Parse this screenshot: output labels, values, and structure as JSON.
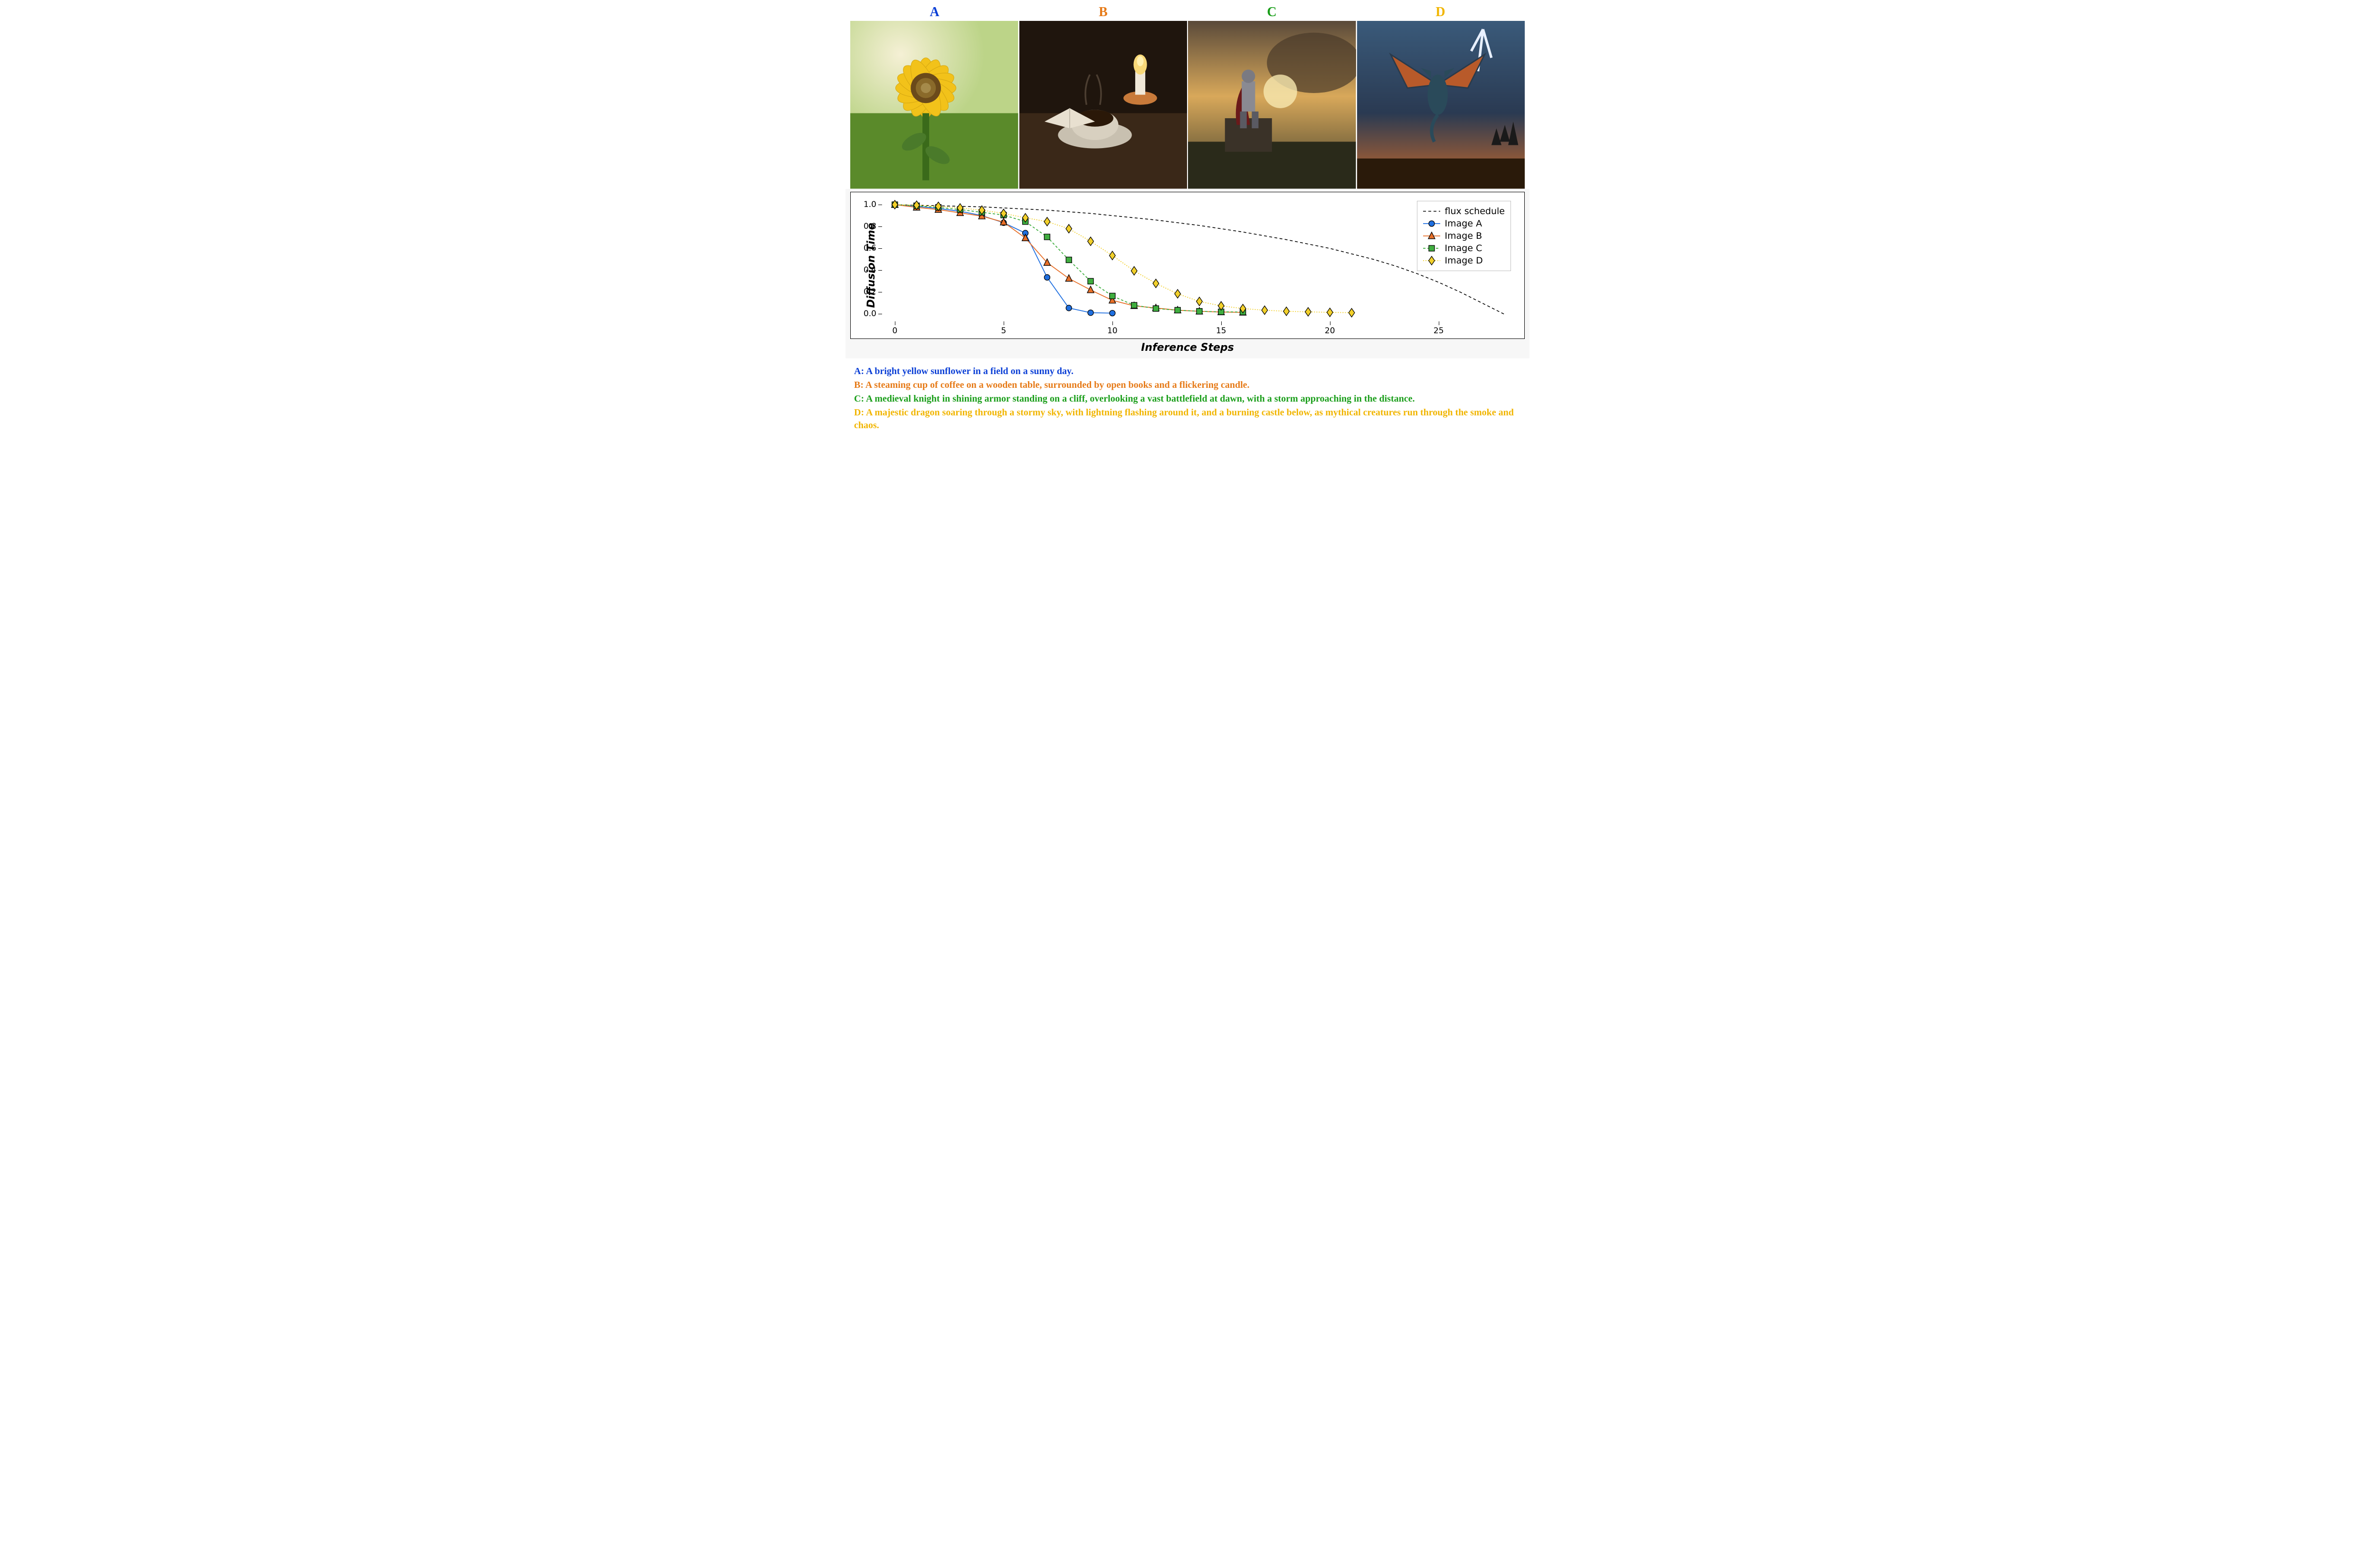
{
  "header": {
    "labels": [
      "A",
      "B",
      "C",
      "D"
    ],
    "colors": [
      "#0b3fd6",
      "#e67a17",
      "#1a9e1a",
      "#f1b500"
    ]
  },
  "images": {
    "A": {
      "desc": "sunflower-image",
      "bg": "linear-gradient(180deg,#dfe9c8 0%,#a7c85a 55%,#5b8a2a 100%)"
    },
    "B": {
      "desc": "coffee-books-candle-image",
      "bg": "radial-gradient(circle at 70% 30%, #6b4a2a 0%, #2a1d12 70%)"
    },
    "C": {
      "desc": "knight-cliff-storm-image",
      "bg": "linear-gradient(180deg,#7a6a52 0%,#c7a65a 40%,#3a3a2a 100%)"
    },
    "D": {
      "desc": "dragon-stormy-sky-image",
      "bg": "linear-gradient(180deg,#3a5a7a 0%,#2a3a52 40%,#d6722a 100%)"
    }
  },
  "chart": {
    "type": "line",
    "xlabel": "Inference Steps",
    "ylabel": "Diffusion Time",
    "xlim": [
      -0.5,
      28.5
    ],
    "ylim": [
      -0.05,
      1.07
    ],
    "xticks": [
      0,
      5,
      10,
      15,
      20,
      25
    ],
    "yticks": [
      0.0,
      0.2,
      0.4,
      0.6,
      0.8,
      1.0
    ],
    "ytick_labels": [
      "0.0",
      "0.2",
      "0.4",
      "0.6",
      "0.8",
      "1.0"
    ],
    "background_color": "#ffffff",
    "outer_background": "#f7f7f7",
    "border_color": "#000000",
    "label_fontsize": 22,
    "tick_fontsize": 17,
    "legend_fontsize": 19,
    "series": {
      "flux": {
        "label": "flux schedule",
        "color": "#000000",
        "dash": "6,5",
        "linewidth": 1.6,
        "marker": "none",
        "x": [
          0,
          1,
          2,
          3,
          4,
          5,
          6,
          7,
          8,
          9,
          10,
          11,
          12,
          13,
          14,
          15,
          16,
          17,
          18,
          19,
          20,
          21,
          22,
          23,
          24,
          25,
          26,
          27,
          28
        ],
        "y": [
          1.0,
          0.995,
          0.99,
          0.985,
          0.98,
          0.97,
          0.96,
          0.95,
          0.935,
          0.92,
          0.9,
          0.88,
          0.86,
          0.835,
          0.81,
          0.78,
          0.75,
          0.715,
          0.68,
          0.64,
          0.6,
          0.55,
          0.5,
          0.44,
          0.37,
          0.29,
          0.2,
          0.1,
          0.0
        ]
      },
      "A": {
        "label": "Image A",
        "color": "#1f6fe0",
        "dash": "none",
        "linewidth": 1.8,
        "marker": "circle",
        "marker_size": 6,
        "x": [
          0,
          1,
          2,
          3,
          4,
          5,
          6,
          7,
          8,
          9,
          10
        ],
        "y": [
          1.0,
          0.985,
          0.965,
          0.94,
          0.9,
          0.835,
          0.74,
          0.335,
          0.055,
          0.012,
          0.008
        ]
      },
      "B": {
        "label": "Image B",
        "color": "#e76f28",
        "dash": "none",
        "linewidth": 1.8,
        "marker": "triangle",
        "marker_size": 7,
        "x": [
          0,
          1,
          2,
          3,
          4,
          5,
          6,
          7,
          8,
          9,
          10,
          11,
          12,
          13,
          14,
          15,
          16
        ],
        "y": [
          1.0,
          0.975,
          0.955,
          0.925,
          0.895,
          0.84,
          0.695,
          0.47,
          0.325,
          0.22,
          0.125,
          0.075,
          0.055,
          0.035,
          0.025,
          0.018,
          0.015
        ]
      },
      "C": {
        "label": "Image C",
        "color": "#3fae3f",
        "dash": "5,4",
        "linewidth": 1.8,
        "marker": "square",
        "marker_size": 6,
        "x": [
          0,
          1,
          2,
          3,
          4,
          5,
          6,
          7,
          8,
          9,
          10,
          11,
          12,
          13,
          14,
          15,
          16
        ],
        "y": [
          1.0,
          0.99,
          0.975,
          0.955,
          0.93,
          0.905,
          0.845,
          0.705,
          0.495,
          0.3,
          0.165,
          0.08,
          0.05,
          0.035,
          0.025,
          0.02,
          0.018
        ]
      },
      "D": {
        "label": "Image D",
        "color": "#f2d02a",
        "dash": "2,3",
        "linewidth": 1.8,
        "marker": "diamond",
        "marker_size": 7,
        "x": [
          0,
          1,
          2,
          3,
          4,
          5,
          6,
          7,
          8,
          9,
          10,
          11,
          12,
          13,
          14,
          15,
          16,
          17,
          18,
          19,
          20,
          21
        ],
        "y": [
          1.0,
          0.995,
          0.985,
          0.97,
          0.95,
          0.92,
          0.88,
          0.845,
          0.78,
          0.665,
          0.535,
          0.395,
          0.28,
          0.185,
          0.115,
          0.075,
          0.05,
          0.035,
          0.025,
          0.02,
          0.015,
          0.012
        ]
      }
    },
    "legend_order": [
      "flux",
      "A",
      "B",
      "C",
      "D"
    ]
  },
  "captions": {
    "A": {
      "prefix": "A: ",
      "text": "A bright yellow sunflower in a field on a sunny day.",
      "color": "#0b3fd6"
    },
    "B": {
      "prefix": "B: ",
      "text": "A steaming cup of coffee on a wooden table, surrounded by open books and a flickering candle.",
      "color": "#e67a17"
    },
    "C": {
      "prefix": "C: ",
      "text": "A medieval knight in shining armor standing on a cliff, overlooking a vast battlefield at dawn, with a storm approaching in the distance.",
      "color": "#1a9e1a"
    },
    "D": {
      "prefix": "D: ",
      "text": "A majestic dragon soaring through a stormy sky, with lightning flashing around it, and a burning castle below, as mythical creatures run through the smoke and chaos.",
      "color": "#f1b500"
    }
  }
}
